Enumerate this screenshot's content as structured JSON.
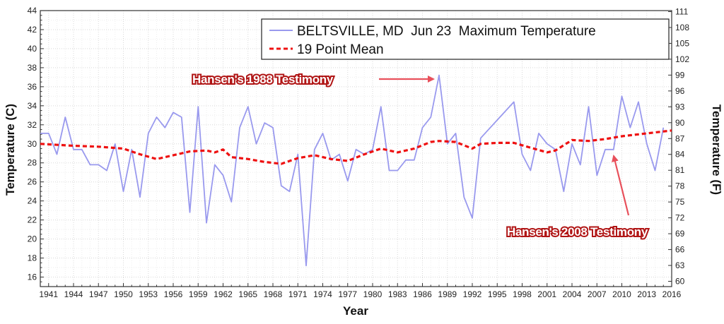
{
  "chart_data": {
    "type": "line",
    "title": "",
    "xlabel": "Year",
    "ylabel": "Temperature (C)",
    "ylabel_right": "Temperature (F)",
    "xlim": [
      1940,
      2016
    ],
    "ylim": [
      15,
      44
    ],
    "ylim_right_f": [
      59,
      111.2
    ],
    "x_ticks": [
      1941,
      1944,
      1947,
      1950,
      1953,
      1956,
      1959,
      1962,
      1965,
      1968,
      1971,
      1974,
      1977,
      1980,
      1983,
      1986,
      1989,
      1992,
      1995,
      1998,
      2001,
      2004,
      2007,
      2010,
      2013,
      2016
    ],
    "y_ticks": [
      16,
      18,
      20,
      22,
      24,
      26,
      28,
      30,
      32,
      34,
      36,
      38,
      40,
      42,
      44
    ],
    "y_ticks_right": [
      60,
      63,
      66,
      69,
      72,
      75,
      78,
      81,
      84,
      87,
      90,
      93,
      96,
      99,
      102,
      105,
      108,
      111
    ],
    "grid": true,
    "legend_position": "top-right",
    "series": [
      {
        "name": "BELTSVILLE, MD  Jun 23  Maximum Temperature",
        "color": "#9999ee",
        "style": "solid",
        "x": [
          1940,
          1941,
          1942,
          1943,
          1944,
          1945,
          1946,
          1947,
          1948,
          1949,
          1950,
          1951,
          1952,
          1953,
          1954,
          1955,
          1956,
          1957,
          1958,
          1959,
          1960,
          1961,
          1962,
          1963,
          1964,
          1965,
          1966,
          1967,
          1968,
          1969,
          1970,
          1971,
          1972,
          1973,
          1974,
          1975,
          1976,
          1977,
          1978,
          1979,
          1980,
          1981,
          1982,
          1983,
          1984,
          1985,
          1986,
          1987,
          1988,
          1989,
          1990,
          1991,
          1992,
          1993,
          1997,
          1998,
          1999,
          2000,
          2001,
          2002,
          2003,
          2004,
          2005,
          2006,
          2007,
          2008,
          2009,
          2010,
          2011,
          2012,
          2013,
          2014,
          2015
        ],
        "y": [
          31.1,
          31.1,
          28.9,
          32.8,
          29.4,
          29.4,
          27.8,
          27.8,
          27.2,
          30.0,
          25.0,
          29.4,
          24.4,
          31.1,
          32.8,
          31.7,
          33.3,
          32.8,
          22.8,
          33.9,
          21.7,
          27.8,
          26.7,
          23.9,
          31.7,
          33.9,
          30.0,
          32.2,
          31.7,
          25.6,
          25.0,
          28.9,
          17.2,
          29.4,
          31.1,
          28.3,
          28.9,
          26.1,
          29.4,
          28.9,
          29.4,
          33.9,
          27.2,
          27.2,
          28.3,
          28.3,
          31.7,
          32.8,
          37.2,
          30.0,
          31.1,
          24.4,
          22.2,
          30.6,
          34.4,
          28.9,
          27.2,
          31.1,
          30.0,
          29.4,
          25.0,
          30.0,
          27.8,
          33.9,
          26.7,
          29.4,
          29.4,
          35.0,
          31.7,
          34.4,
          30.0,
          27.2,
          31.7
        ]
      },
      {
        "name": "19 Point Mean",
        "color": "#ee1111",
        "style": "dashed",
        "x": [
          1940,
          1944,
          1947,
          1950,
          1952,
          1954,
          1956,
          1958,
          1960,
          1961,
          1962,
          1963,
          1965,
          1967,
          1969,
          1971,
          1973,
          1975,
          1977,
          1979,
          1981,
          1983,
          1985,
          1987,
          1988,
          1990,
          1992,
          1993,
          1995,
          1997,
          1999,
          2001,
          2002,
          2004,
          2006,
          2008,
          2010,
          2012,
          2014,
          2016
        ],
        "y": [
          30.0,
          29.8,
          29.7,
          29.5,
          28.9,
          28.4,
          28.8,
          29.2,
          29.3,
          29.1,
          29.4,
          28.6,
          28.4,
          28.1,
          27.9,
          28.5,
          28.8,
          28.4,
          28.2,
          28.9,
          29.5,
          29.1,
          29.5,
          30.2,
          30.3,
          30.2,
          29.5,
          30.0,
          30.1,
          30.1,
          29.6,
          29.1,
          29.3,
          30.4,
          30.3,
          30.5,
          30.8,
          31.0,
          31.2,
          31.4
        ]
      }
    ],
    "annotations": [
      {
        "text": "Hansen's 1988 Testimony",
        "points_to": [
          1988,
          37.2
        ]
      },
      {
        "text": "Hansen's 2008 Testimony",
        "points_to": [
          2008,
          29.4
        ]
      }
    ]
  }
}
